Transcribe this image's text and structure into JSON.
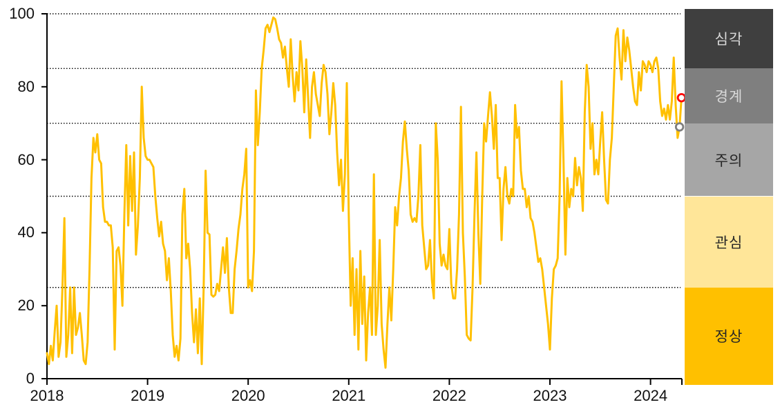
{
  "chart_data": {
    "type": "line",
    "title": "",
    "background_color": "#FFFFFF",
    "x_axis": {
      "min": 2018,
      "max": 2024.31,
      "ticks": [
        2018,
        2019,
        2020,
        2021,
        2022,
        2023,
        2024
      ]
    },
    "y_axis": {
      "min": 0,
      "max": 100,
      "ticks": [
        0,
        20,
        40,
        60,
        80,
        100
      ]
    },
    "gridlines": {
      "values": [
        100,
        85,
        70,
        50,
        25
      ],
      "style": "dotted",
      "color": "#000000"
    },
    "axis_color": "#000000",
    "series": [
      {
        "name": "weekly-risk-index",
        "color": "#FFC000",
        "start_year": 2018,
        "points_per_year": 52,
        "values": [
          7,
          4,
          9,
          5,
          13,
          20,
          6,
          10,
          25,
          44,
          6,
          12,
          25,
          7,
          25,
          12,
          14,
          18,
          12,
          5,
          4,
          10,
          30,
          55,
          66,
          62,
          67,
          60,
          59,
          47,
          43,
          43,
          42,
          42,
          36,
          8,
          35,
          36,
          31,
          20,
          45,
          64,
          42,
          61,
          46,
          62,
          34,
          42,
          55,
          80,
          66,
          61,
          60,
          60,
          59,
          58,
          50,
          44,
          39,
          43,
          37,
          35,
          27,
          33,
          24,
          12,
          6,
          9,
          5,
          11,
          45,
          52,
          33,
          37,
          30,
          18,
          10,
          19,
          7,
          22,
          4,
          25,
          57,
          40,
          39.5,
          23,
          22.5,
          23,
          26,
          24,
          30,
          36,
          29,
          38.5,
          25,
          18,
          18,
          30,
          35,
          41,
          45,
          52,
          56,
          63,
          25,
          27,
          24,
          35,
          79,
          64,
          73,
          85,
          90,
          96,
          97,
          95,
          97,
          99,
          98.5,
          96,
          93,
          92,
          88,
          91,
          85,
          80,
          93,
          83,
          76,
          84,
          79,
          92.5,
          85,
          73,
          87.5,
          77,
          66,
          80,
          84,
          78,
          75,
          72,
          81,
          86,
          84,
          78,
          67,
          73,
          81,
          75,
          62,
          53,
          60,
          46,
          56,
          81,
          45,
          20,
          33,
          12,
          30,
          8,
          35,
          15,
          28,
          5,
          18,
          25,
          12,
          56,
          12,
          20,
          38,
          15,
          8,
          3,
          15,
          25,
          16,
          30,
          47,
          42,
          50,
          55,
          65,
          70.5,
          63,
          57,
          45,
          43,
          44,
          43,
          50,
          64,
          42,
          36,
          30,
          31,
          38,
          27,
          22,
          70,
          60,
          37,
          31,
          34,
          31,
          30,
          41,
          26,
          22,
          22,
          30,
          45,
          74.5,
          40,
          28,
          12,
          11,
          10.5,
          25,
          45,
          62,
          40,
          26,
          50,
          70,
          65,
          72,
          78.5,
          72,
          63,
          75,
          55,
          55,
          38,
          52,
          58,
          50,
          48,
          52,
          50,
          75,
          66,
          69,
          57,
          52,
          52,
          47,
          50,
          44,
          43,
          40,
          36,
          32,
          33,
          30,
          25,
          20,
          15,
          8,
          22,
          30,
          31,
          33,
          50,
          81.5,
          60,
          34,
          55,
          47,
          52,
          50,
          60.5,
          53,
          58,
          55,
          46,
          73,
          86,
          80,
          63,
          70,
          56,
          60,
          56,
          65,
          73,
          60,
          49,
          48,
          60,
          66,
          80,
          94,
          96,
          88,
          82,
          95.5,
          87,
          93.5,
          90,
          85,
          80,
          76,
          75,
          84,
          79,
          87,
          86,
          84,
          87,
          86,
          84,
          87,
          88,
          85,
          76,
          72,
          74,
          71,
          75,
          71,
          76,
          88,
          75,
          66,
          69,
          77
        ]
      }
    ],
    "markers": [
      {
        "name": "previous-value",
        "index": 327,
        "value": 69,
        "stroke": "#7F7F7F",
        "fill": "#FFFFFF"
      },
      {
        "name": "latest-value",
        "index": 328,
        "value": 77,
        "stroke": "#FF0000",
        "fill": "#FFFFFF"
      }
    ],
    "zones": [
      {
        "label": "심각",
        "from": 85,
        "to": 100,
        "color": "#3F3F3F",
        "text_color": "#D9D9D9"
      },
      {
        "label": "경계",
        "from": 70,
        "to": 85,
        "color": "#7F7F7F",
        "text_color": "#D9D9D9"
      },
      {
        "label": "주의",
        "from": 50,
        "to": 70,
        "color": "#A6A6A6",
        "text_color": "#262626"
      },
      {
        "label": "관심",
        "from": 25,
        "to": 50,
        "color": "#FFE699",
        "text_color": "#262626"
      },
      {
        "label": "정상",
        "from": 0,
        "to": 25,
        "color": "#FFC000",
        "text_color": "#262626"
      }
    ],
    "legend_position": "right-zone-column",
    "grid": "threshold-lines-only"
  }
}
